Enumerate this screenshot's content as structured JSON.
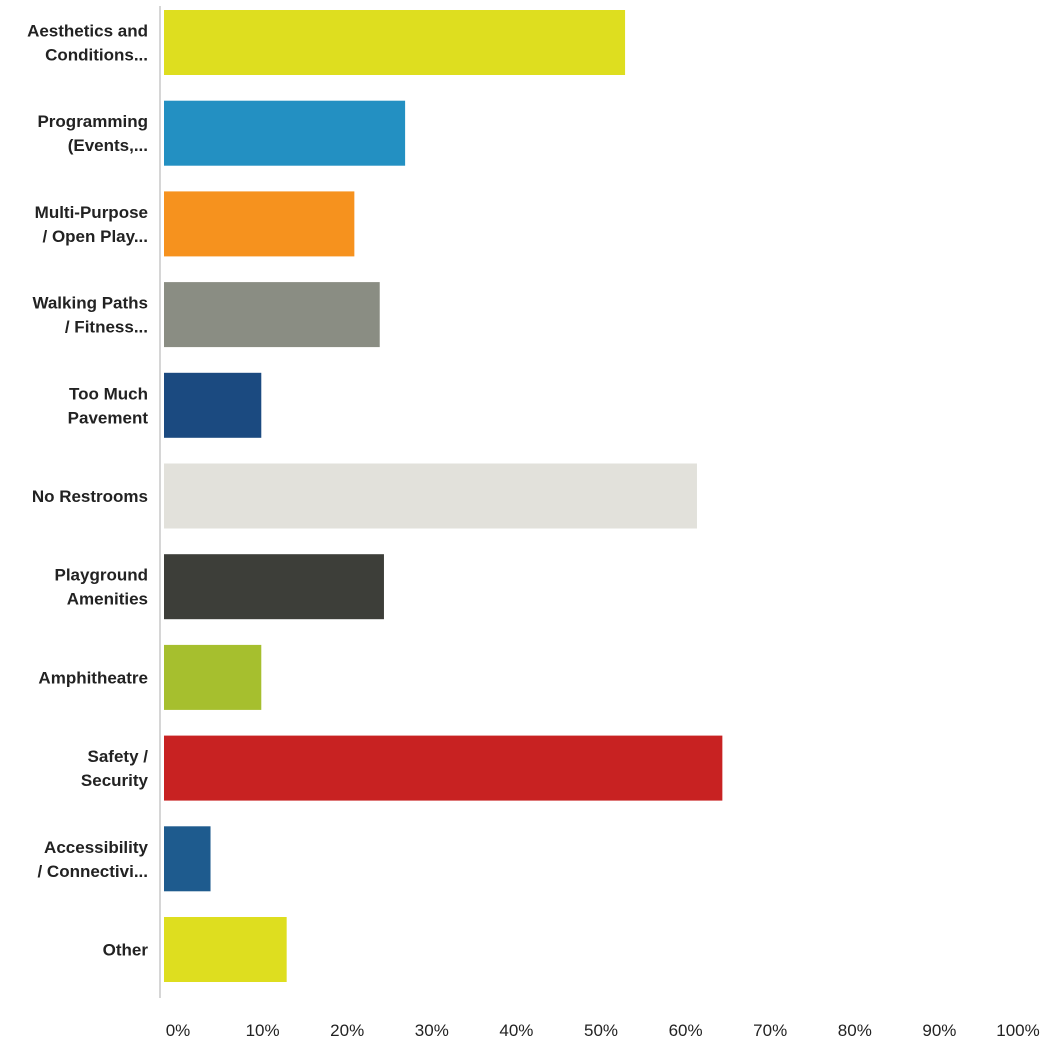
{
  "chart_data": {
    "type": "bar",
    "orientation": "horizontal",
    "categories": [
      [
        "Aesthetics and",
        "Conditions..."
      ],
      [
        "Programming",
        "(Events,..."
      ],
      [
        "Multi-Purpose",
        "/ Open Play..."
      ],
      [
        "Walking Paths",
        "/ Fitness..."
      ],
      [
        "Too Much",
        "Pavement"
      ],
      [
        "No Restrooms"
      ],
      [
        "Playground",
        "Amenities"
      ],
      [
        "Amphitheatre"
      ],
      [
        "Safety /",
        "Security"
      ],
      [
        "Accessibility",
        "/ Connectivi..."
      ],
      [
        "Other"
      ]
    ],
    "values": [
      54.5,
      28.5,
      22.5,
      25.5,
      11.5,
      63,
      26,
      11.5,
      66,
      5.5,
      14.5
    ],
    "colors": [
      "#dede1f",
      "#2390c2",
      "#f6921e",
      "#8a8d83",
      "#1b4a80",
      "#e2e1db",
      "#3d3e39",
      "#a6bf2e",
      "#c82222",
      "#1e5b8e",
      "#dede1f"
    ],
    "xlim": [
      0,
      100
    ],
    "xticks": [
      "0%",
      "10%",
      "20%",
      "30%",
      "40%",
      "50%",
      "60%",
      "70%",
      "80%",
      "90%",
      "100%"
    ],
    "grid": false,
    "legend": "none"
  }
}
